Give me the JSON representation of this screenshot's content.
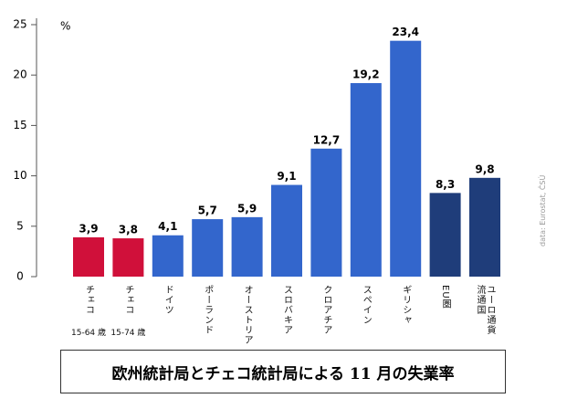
{
  "chart_data": {
    "type": "bar",
    "title": "欧州統計局とチェコ統計局による 11 月の失業率",
    "y_unit": "%",
    "source": "data: Eurostat, ČSÚ",
    "categories": [
      "チェコ",
      "チェコ",
      "ドイツ",
      "ポーランド",
      "オーストリア",
      "スロバキア",
      "クロアチア",
      "スペイン",
      "ギリシャ",
      "EU圏",
      "ユーロ通貨\n流通国"
    ],
    "subcategories": [
      "15-64 歳",
      "15-74 歳"
    ],
    "values": [
      3.9,
      3.8,
      4.1,
      5.7,
      5.9,
      9.1,
      12.7,
      19.2,
      23.4,
      8.3,
      9.8
    ],
    "value_labels": [
      "3,9",
      "3,8",
      "4,1",
      "5,7",
      "5,9",
      "9,1",
      "12,7",
      "19,2",
      "23,4",
      "8,3",
      "9,8"
    ],
    "colors": [
      "#d0103a",
      "#d0103a",
      "#3366cc",
      "#3366cc",
      "#3366cc",
      "#3366cc",
      "#3366cc",
      "#3366cc",
      "#3366cc",
      "#1f3d7a",
      "#1f3d7a"
    ],
    "ylim": [
      0,
      25
    ],
    "yticks": [
      0,
      5,
      10,
      15,
      20,
      25
    ]
  }
}
